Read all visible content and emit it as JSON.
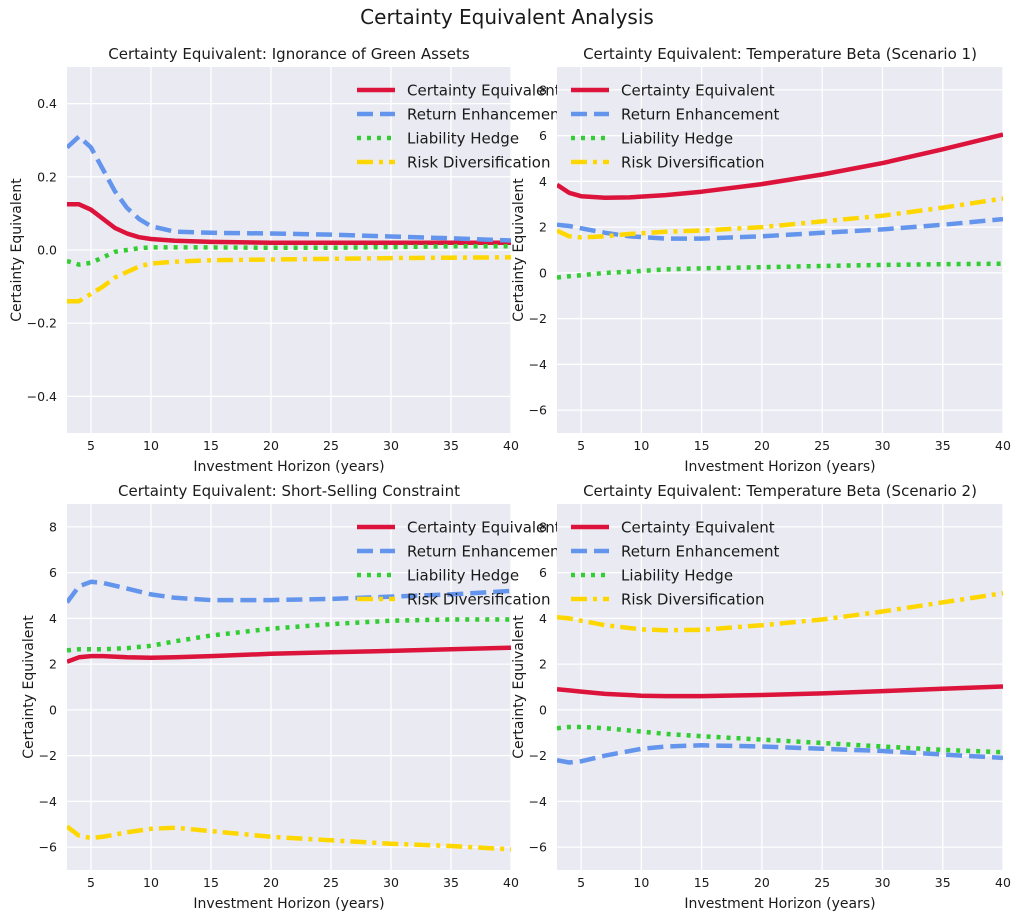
{
  "figure": {
    "title": "Certainty Equivalent Analysis"
  },
  "style": {
    "panel_bg": "#EAEAF2",
    "grid": "#FFFFFF"
  },
  "chart_data": [
    {
      "type": "line",
      "title": "Certainty Equivalent: Ignorance of Green Assets",
      "xlabel": "Investment Horizon (years)",
      "ylabel": "Certainty Equivalent",
      "xlim": [
        3,
        40
      ],
      "ylim": [
        -0.5,
        0.5
      ],
      "xticks": [
        5,
        10,
        15,
        20,
        25,
        30,
        35,
        40
      ],
      "yticks": [
        -0.4,
        -0.2,
        0.0,
        0.2,
        0.4
      ],
      "ytick_labels": [
        "−0.4",
        "−0.2",
        "0.0",
        "0.2",
        "0.4"
      ],
      "grid": true,
      "legend": "top-right",
      "x": [
        3,
        4,
        5,
        6,
        7,
        8,
        9,
        10,
        12,
        15,
        20,
        25,
        30,
        35,
        40
      ],
      "series": [
        {
          "name": "Certainty Equivalent",
          "color": "#DC143C",
          "dash": "solid",
          "values": [
            0.125,
            0.125,
            0.11,
            0.085,
            0.06,
            0.045,
            0.035,
            0.03,
            0.025,
            0.022,
            0.02,
            0.02,
            0.02,
            0.02,
            0.02
          ]
        },
        {
          "name": "Return Enhancement",
          "color": "#6495ED",
          "dash": "dashed",
          "values": [
            0.28,
            0.31,
            0.28,
            0.22,
            0.16,
            0.115,
            0.085,
            0.065,
            0.05,
            0.047,
            0.045,
            0.042,
            0.037,
            0.032,
            0.026
          ]
        },
        {
          "name": "Liability Hedge",
          "color": "#32CD32",
          "dash": "dotted",
          "values": [
            -0.03,
            -0.04,
            -0.035,
            -0.02,
            -0.005,
            0.0,
            0.005,
            0.007,
            0.007,
            0.007,
            0.006,
            0.006,
            0.008,
            0.01,
            0.01
          ]
        },
        {
          "name": "Risk Diversification",
          "color": "#FFD700",
          "dash": "dashdot",
          "values": [
            -0.14,
            -0.14,
            -0.12,
            -0.1,
            -0.075,
            -0.06,
            -0.045,
            -0.037,
            -0.032,
            -0.028,
            -0.026,
            -0.024,
            -0.022,
            -0.021,
            -0.02
          ]
        }
      ]
    },
    {
      "type": "line",
      "title": "Certainty Equivalent: Temperature Beta (Scenario 1)",
      "xlabel": "Investment Horizon (years)",
      "ylabel": "Certainty Equivalent",
      "xlim": [
        3,
        40
      ],
      "ylim": [
        -7,
        9
      ],
      "xticks": [
        5,
        10,
        15,
        20,
        25,
        30,
        35,
        40
      ],
      "yticks": [
        -6,
        -4,
        -2,
        0,
        2,
        4,
        6,
        8
      ],
      "ytick_labels": [
        "−6",
        "−4",
        "−2",
        "0",
        "2",
        "4",
        "6",
        "8"
      ],
      "grid": true,
      "legend": "top-left",
      "x": [
        3,
        4,
        5,
        7,
        9,
        12,
        15,
        20,
        25,
        30,
        35,
        40
      ],
      "series": [
        {
          "name": "Certainty Equivalent",
          "color": "#DC143C",
          "dash": "solid",
          "values": [
            3.85,
            3.5,
            3.35,
            3.28,
            3.3,
            3.4,
            3.55,
            3.88,
            4.3,
            4.8,
            5.4,
            6.05
          ]
        },
        {
          "name": "Return Enhancement",
          "color": "#6495ED",
          "dash": "dashed",
          "values": [
            2.1,
            2.05,
            1.95,
            1.75,
            1.6,
            1.5,
            1.5,
            1.6,
            1.75,
            1.9,
            2.1,
            2.35
          ]
        },
        {
          "name": "Liability Hedge",
          "color": "#32CD32",
          "dash": "dotted",
          "values": [
            -0.2,
            -0.15,
            -0.1,
            0.0,
            0.05,
            0.15,
            0.2,
            0.25,
            0.3,
            0.35,
            0.38,
            0.4
          ]
        },
        {
          "name": "Risk Diversification",
          "color": "#FFD700",
          "dash": "dashdot",
          "values": [
            1.85,
            1.6,
            1.55,
            1.6,
            1.7,
            1.8,
            1.85,
            2.0,
            2.25,
            2.5,
            2.85,
            3.25
          ]
        }
      ]
    },
    {
      "type": "line",
      "title": "Certainty Equivalent: Short-Selling Constraint",
      "xlabel": "Investment Horizon (years)",
      "ylabel": "Certainty Equivalent",
      "xlim": [
        3,
        40
      ],
      "ylim": [
        -7,
        9
      ],
      "xticks": [
        5,
        10,
        15,
        20,
        25,
        30,
        35,
        40
      ],
      "yticks": [
        -6,
        -4,
        -2,
        0,
        2,
        4,
        6,
        8
      ],
      "ytick_labels": [
        "−6",
        "−4",
        "−2",
        "0",
        "2",
        "4",
        "6",
        "8"
      ],
      "grid": true,
      "legend": "top-right",
      "x": [
        3,
        4,
        5,
        6,
        8,
        10,
        12,
        15,
        20,
        25,
        30,
        35,
        40
      ],
      "series": [
        {
          "name": "Certainty Equivalent",
          "color": "#DC143C",
          "dash": "solid",
          "values": [
            2.1,
            2.3,
            2.35,
            2.35,
            2.3,
            2.28,
            2.3,
            2.35,
            2.45,
            2.52,
            2.58,
            2.65,
            2.72
          ]
        },
        {
          "name": "Return Enhancement",
          "color": "#6495ED",
          "dash": "dashed",
          "values": [
            4.7,
            5.4,
            5.6,
            5.55,
            5.3,
            5.05,
            4.9,
            4.8,
            4.8,
            4.85,
            4.95,
            5.05,
            5.2
          ]
        },
        {
          "name": "Liability Hedge",
          "color": "#32CD32",
          "dash": "dotted",
          "values": [
            2.6,
            2.65,
            2.65,
            2.65,
            2.7,
            2.8,
            3.0,
            3.25,
            3.55,
            3.75,
            3.9,
            3.95,
            3.95
          ]
        },
        {
          "name": "Risk Diversification",
          "color": "#FFD700",
          "dash": "dashdot",
          "values": [
            -5.1,
            -5.5,
            -5.6,
            -5.55,
            -5.35,
            -5.2,
            -5.15,
            -5.3,
            -5.55,
            -5.7,
            -5.85,
            -5.95,
            -6.1
          ]
        }
      ]
    },
    {
      "type": "line",
      "title": "Certainty Equivalent: Temperature Beta (Scenario 2)",
      "xlabel": "Investment Horizon (years)",
      "ylabel": "Certainty Equivalent",
      "xlim": [
        3,
        40
      ],
      "ylim": [
        -7,
        9
      ],
      "xticks": [
        5,
        10,
        15,
        20,
        25,
        30,
        35,
        40
      ],
      "yticks": [
        -6,
        -4,
        -2,
        0,
        2,
        4,
        6,
        8
      ],
      "ytick_labels": [
        "−6",
        "−4",
        "−2",
        "0",
        "2",
        "4",
        "6",
        "8"
      ],
      "grid": true,
      "legend": "top-left",
      "x": [
        3,
        4,
        5,
        7,
        10,
        12,
        15,
        20,
        25,
        30,
        35,
        40
      ],
      "series": [
        {
          "name": "Certainty Equivalent",
          "color": "#DC143C",
          "dash": "solid",
          "values": [
            0.9,
            0.85,
            0.8,
            0.7,
            0.62,
            0.6,
            0.6,
            0.65,
            0.72,
            0.82,
            0.92,
            1.02
          ]
        },
        {
          "name": "Return Enhancement",
          "color": "#6495ED",
          "dash": "dashed",
          "values": [
            -2.2,
            -2.3,
            -2.25,
            -2.0,
            -1.7,
            -1.6,
            -1.55,
            -1.6,
            -1.7,
            -1.8,
            -1.95,
            -2.1
          ]
        },
        {
          "name": "Liability Hedge",
          "color": "#32CD32",
          "dash": "dotted",
          "values": [
            -0.8,
            -0.75,
            -0.75,
            -0.8,
            -0.95,
            -1.05,
            -1.15,
            -1.3,
            -1.45,
            -1.6,
            -1.75,
            -1.85
          ]
        },
        {
          "name": "Risk Diversification",
          "color": "#FFD700",
          "dash": "dashdot",
          "values": [
            4.05,
            4.0,
            3.9,
            3.7,
            3.52,
            3.48,
            3.5,
            3.7,
            3.95,
            4.3,
            4.7,
            5.1
          ]
        }
      ]
    }
  ]
}
